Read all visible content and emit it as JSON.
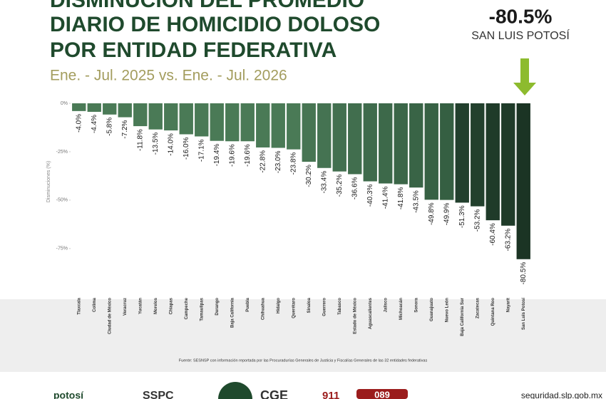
{
  "chart_data": {
    "type": "bar",
    "title": [
      "DISMINUCIÓN DEL PROMEDIO",
      "DIARIO DE HOMICIDIO DOLOSO",
      "POR ENTIDAD FEDERATIVA"
    ],
    "subtitle": "Ene. - Jul. 2025 vs. Ene. - Jul. 2026",
    "annotation": {
      "value": "-80.5%",
      "label": "SAN LUIS POTOSÍ"
    },
    "y_label": "Disminuciones (%)",
    "source": "Fuente: SESNSP con información reportada por las Procuradurías Generales de Justicia y Fiscalías Generales de las 32 entidades federativas",
    "categories": [
      "Tlaxcala",
      "Colima",
      "Ciudad de México",
      "Veracruz",
      "Yucatán",
      "Morelos",
      "Chiapas",
      "Campeche",
      "Tamaulipas",
      "Durango",
      "Baja California",
      "Puebla",
      "Chihuahua",
      "Hidalgo",
      "Querétaro",
      "Sinaloa",
      "Guerrero",
      "Tabasco",
      "Estado de México",
      "Aguascalientes",
      "Jalisco",
      "Michoacán",
      "Sonora",
      "Guanajuato",
      "Nuevo León",
      "Baja California Sur",
      "Zacatecas",
      "Quintana Roo",
      "Nayarit",
      "San Luis Potosí"
    ],
    "values": [
      -4.0,
      -4.4,
      -5.8,
      -7.2,
      -11.8,
      -13.5,
      -14.0,
      -16.0,
      -17.1,
      -19.4,
      -19.6,
      -19.6,
      -22.8,
      -23.0,
      -23.8,
      -30.2,
      -33.4,
      -35.2,
      -36.6,
      -40.3,
      -41.4,
      -41.8,
      -43.5,
      -49.8,
      -49.9,
      -51.3,
      -53.2,
      -60.4,
      -63.2,
      -80.5
    ],
    "value_labels": [
      "-4.0%",
      "-4.4%",
      "-5.8%",
      "-7.2%",
      "-11.8%",
      "-13.5%",
      "-14.0%",
      "-16.0%",
      "-17.1%",
      "-19.4%",
      "-19.6%",
      "-19.6%",
      "-22.8%",
      "-23.0%",
      "-23.8%",
      "-30.2%",
      "-33.4%",
      "-35.2%",
      "-36.6%",
      "-40.3%",
      "-41.4%",
      "-41.8%",
      "-43.5%",
      "-49.8%",
      "-49.9%",
      "-51.3%",
      "-53.2%",
      "-60.4%",
      "-63.2%",
      "-80.5%"
    ],
    "colors": [
      "#4a7a56",
      "#4a7a56",
      "#4a7a56",
      "#4a7a56",
      "#4a7a56",
      "#4a7a56",
      "#4a7a56",
      "#4a7a56",
      "#4a7a56",
      "#4a7a56",
      "#4a7a56",
      "#4a7a56",
      "#4a7a56",
      "#4a7a56",
      "#4a7a56",
      "#477553",
      "#457352",
      "#437050",
      "#416e4e",
      "#3f6b4c",
      "#3d694a",
      "#3b6648",
      "#396446",
      "#376144",
      "#355f42",
      "#22402d",
      "#22402d",
      "#1f3b29",
      "#1f3b29",
      "#1b3424"
    ],
    "ylim": [
      -85,
      0
    ],
    "yticks": [
      {
        "value": 0,
        "label": "0%"
      },
      {
        "value": -25,
        "label": "-25%"
      },
      {
        "value": -50,
        "label": "-50%"
      },
      {
        "value": -75,
        "label": "-75%"
      }
    ]
  },
  "footer": {
    "logos": [
      "potosí",
      "SSPC",
      "CGE",
      "911",
      "089"
    ],
    "url": "seguridad.slp.gob.mx"
  }
}
